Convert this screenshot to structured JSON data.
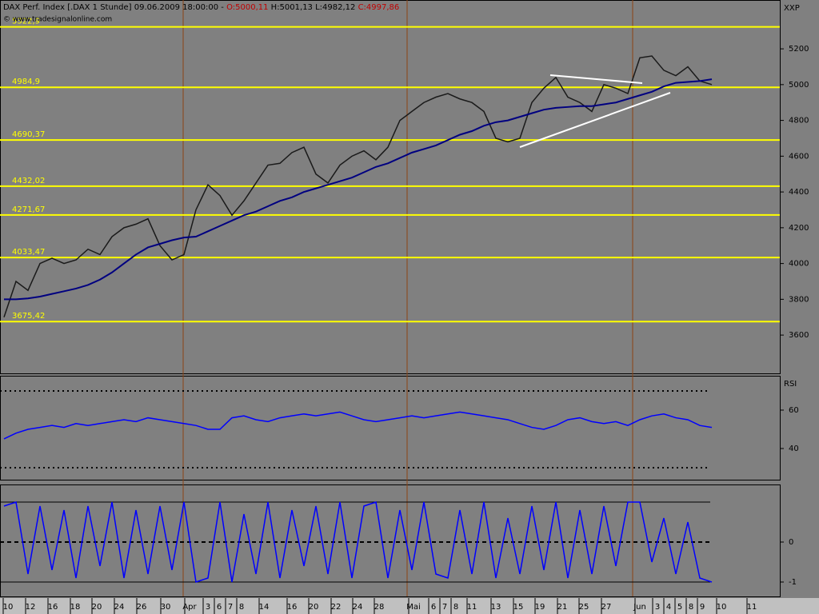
{
  "header": {
    "title": "DAX Perf. Index [.DAX  1 Stunde] 09.06.2009 18:00:00 -",
    "open": "O:5000,11",
    "high_low": "H:5001,13 L:4982,12",
    "close": "C:4997,86",
    "copyright": "© www.tradesignalonline.com"
  },
  "time_axis": [
    "10",
    "12",
    "16",
    "18",
    "20",
    "24",
    "26",
    "30",
    "Apr",
    "3",
    "6",
    "7",
    "8",
    "14",
    "16",
    "20",
    "22",
    "24",
    "28",
    "Mai",
    "6",
    "7",
    "8",
    "11",
    "13",
    "15",
    "19",
    "21",
    "25",
    "27",
    "Jun",
    "3",
    "4",
    "5",
    "8",
    "9",
    "10",
    "11"
  ],
  "chart_data": [
    {
      "type": "line",
      "y_label": "XXP",
      "ylim": [
        3386,
        5473
      ],
      "yticks": [
        3600,
        3800,
        4000,
        4200,
        4400,
        4600,
        4800,
        5000,
        5200
      ],
      "levels": [
        {
          "value": 5322.9,
          "label": "5322,9"
        },
        {
          "value": 4984.9,
          "label": "4984,9"
        },
        {
          "value": 4690.37,
          "label": "4690,37"
        },
        {
          "value": 4432.02,
          "label": "4432,02"
        },
        {
          "value": 4271.67,
          "label": "4271,67"
        },
        {
          "value": 4033.47,
          "label": "4033,47"
        },
        {
          "value": 3675.42,
          "label": "3675,42"
        }
      ],
      "level_color": "#ffff00",
      "series": [
        {
          "color": "#1a1a1a",
          "values": [
            3700,
            3900,
            3850,
            4000,
            4030,
            4000,
            4020,
            4080,
            4050,
            4150,
            4200,
            4220,
            4250,
            4100,
            4020,
            4050,
            4300,
            4440,
            4380,
            4270,
            4350,
            4450,
            4550,
            4560,
            4620,
            4650,
            4500,
            4450,
            4550,
            4600,
            4630,
            4580,
            4650,
            4800,
            4850,
            4900,
            4930,
            4950,
            4920,
            4900,
            4850,
            4700,
            4680,
            4700,
            4900,
            4980,
            5040,
            4930,
            4900,
            4850,
            5000,
            4980,
            4950,
            5150,
            5160,
            5080,
            5050,
            5100,
            5020,
            5000
          ]
        },
        {
          "color": "#000080",
          "values": [
            3800,
            3800,
            3805,
            3815,
            3830,
            3845,
            3860,
            3880,
            3910,
            3950,
            4000,
            4050,
            4090,
            4110,
            4130,
            4145,
            4150,
            4180,
            4210,
            4240,
            4270,
            4290,
            4320,
            4350,
            4370,
            4400,
            4420,
            4440,
            4460,
            4480,
            4510,
            4540,
            4560,
            4590,
            4620,
            4640,
            4660,
            4690,
            4720,
            4740,
            4770,
            4790,
            4800,
            4820,
            4840,
            4860,
            4870,
            4875,
            4880,
            4880,
            4890,
            4900,
            4920,
            4940,
            4960,
            4990,
            5010,
            5015,
            5020,
            5030
          ]
        }
      ]
    },
    {
      "type": "line",
      "y_label": "RSI",
      "ylim": [
        23.75,
        77.9
      ],
      "yticks": [
        40,
        60
      ],
      "levels": [
        {
          "value": 70,
          "label": null
        },
        {
          "value": 30,
          "label": null
        }
      ],
      "series": [
        {
          "color": "#0000ff",
          "values": [
            45,
            48,
            50,
            51,
            52,
            51,
            53,
            52,
            53,
            54,
            55,
            54,
            56,
            55,
            54,
            53,
            52,
            50,
            50,
            56,
            57,
            55,
            54,
            56,
            57,
            58,
            57,
            58,
            59,
            57,
            55,
            54,
            55,
            56,
            57,
            56,
            57,
            58,
            59,
            58,
            57,
            56,
            55,
            53,
            51,
            50,
            52,
            55,
            56,
            54,
            53,
            54,
            52,
            55,
            57,
            58,
            56,
            55,
            52,
            51
          ]
        }
      ]
    },
    {
      "type": "line",
      "ylim": [
        -1.34,
        1.44
      ],
      "yticks": [
        -1,
        0
      ],
      "levels": [
        {
          "value": 1,
          "label": null
        },
        {
          "value": 0,
          "label": null
        },
        {
          "value": -1,
          "label": null
        }
      ],
      "series": [
        {
          "color": "#0000ff",
          "values": [
            0.9,
            1,
            -0.8,
            0.9,
            -0.7,
            0.8,
            -0.9,
            0.9,
            -0.6,
            1,
            -0.9,
            0.8,
            -0.8,
            0.9,
            -0.7,
            1,
            -1,
            -0.9,
            1,
            -1,
            0.7,
            -0.8,
            1,
            -0.9,
            0.8,
            -0.6,
            0.9,
            -0.8,
            1,
            -0.9,
            0.9,
            1,
            -0.9,
            0.8,
            -0.7,
            1,
            -0.8,
            -0.9,
            0.8,
            -0.8,
            1,
            -0.9,
            0.6,
            -0.8,
            0.9,
            -0.7,
            1,
            -0.9,
            0.8,
            -0.8,
            0.9,
            -0.6,
            1,
            1,
            -0.5,
            0.6,
            -0.8,
            0.5,
            -0.9,
            -1
          ]
        }
      ]
    }
  ]
}
